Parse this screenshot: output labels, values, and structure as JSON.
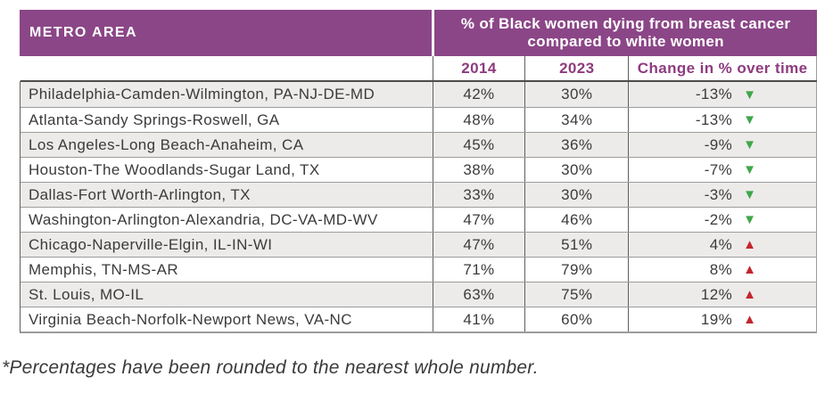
{
  "colors": {
    "header_bg": "#8b4687",
    "header_text": "#ffffff",
    "subheader_text": "#8e3b7f",
    "row_alt_bg": "#edebe9",
    "down_triangle_green": "#3fa74a",
    "up_triangle_red": "#c2272e"
  },
  "table": {
    "header_left": "METRO AREA",
    "header_right_line1": "% of Black women dying from breast cancer",
    "header_right_line2": "compared to white women",
    "subheaders": {
      "y2014": "2014",
      "y2023": "2023",
      "change": "Change in % over time"
    }
  },
  "chart_data": {
    "type": "table",
    "title": "% of Black women dying from breast cancer compared to white women",
    "columns": [
      "METRO AREA",
      "2014",
      "2023",
      "Change in % over time"
    ],
    "rows": [
      {
        "metro": "Philadelphia-Camden-Wilmington, PA-NJ-DE-MD",
        "y2014": "42%",
        "y2023": "30%",
        "change": "-13%",
        "direction": "down"
      },
      {
        "metro": "Atlanta-Sandy Springs-Roswell, GA",
        "y2014": "48%",
        "y2023": "34%",
        "change": "-13%",
        "direction": "down"
      },
      {
        "metro": "Los Angeles-Long Beach-Anaheim, CA",
        "y2014": "45%",
        "y2023": "36%",
        "change": "-9%",
        "direction": "down"
      },
      {
        "metro": "Houston-The Woodlands-Sugar Land, TX",
        "y2014": "38%",
        "y2023": "30%",
        "change": "-7%",
        "direction": "down"
      },
      {
        "metro": "Dallas-Fort Worth-Arlington, TX",
        "y2014": "33%",
        "y2023": "30%",
        "change": "-3%",
        "direction": "down"
      },
      {
        "metro": "Washington-Arlington-Alexandria, DC-VA-MD-WV",
        "y2014": "47%",
        "y2023": "46%",
        "change": "-2%",
        "direction": "down"
      },
      {
        "metro": "Chicago-Naperville-Elgin, IL-IN-WI",
        "y2014": "47%",
        "y2023": "51%",
        "change": "4%",
        "direction": "up"
      },
      {
        "metro": "Memphis, TN-MS-AR",
        "y2014": "71%",
        "y2023": "79%",
        "change": "8%",
        "direction": "up"
      },
      {
        "metro": "St. Louis, MO-IL",
        "y2014": "63%",
        "y2023": "75%",
        "change": "12%",
        "direction": "up"
      },
      {
        "metro": "Virginia Beach-Norfolk-Newport News, VA-NC",
        "y2014": "41%",
        "y2023": "60%",
        "change": "19%",
        "direction": "up"
      }
    ],
    "icons": {
      "down": "down-triangle-icon",
      "up": "up-triangle-icon"
    },
    "footnote": "*Percentages have been rounded to the nearest whole number."
  },
  "footnote": "*Percentages have been rounded to the nearest whole number."
}
